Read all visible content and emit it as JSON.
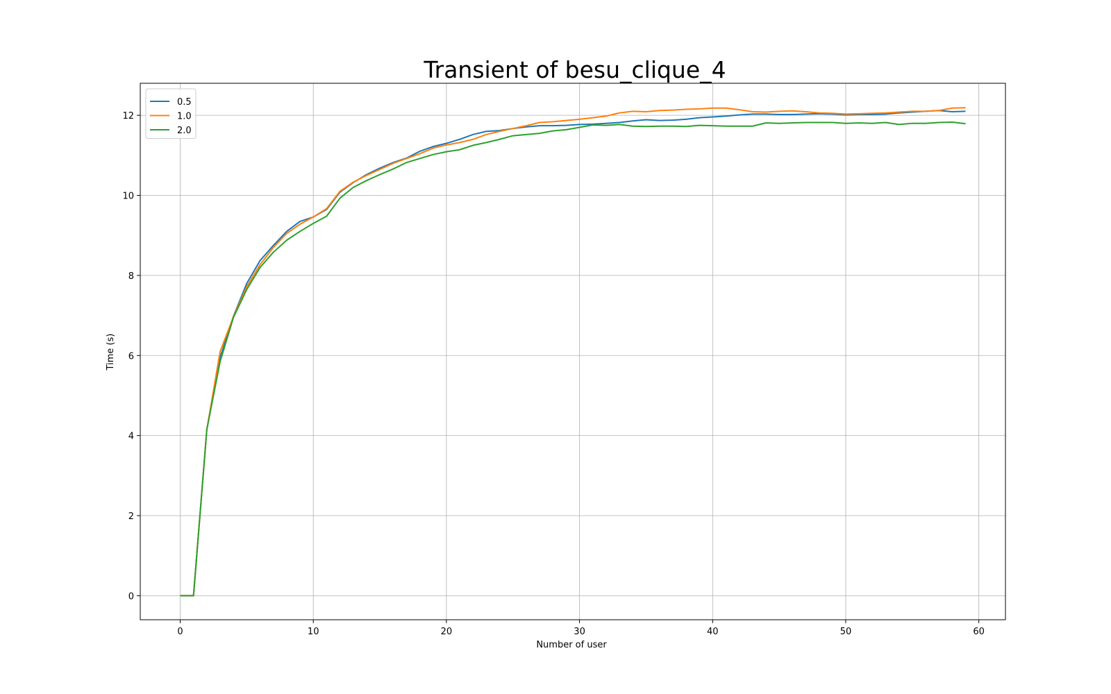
{
  "chart_data": {
    "type": "line",
    "title": "Transient of besu_clique_4",
    "xlabel": "Number of user",
    "ylabel": "Time (s)",
    "xlim": [
      -3,
      62
    ],
    "ylim": [
      -0.6,
      12.8
    ],
    "xticks": [
      0,
      10,
      20,
      30,
      40,
      50,
      60
    ],
    "yticks": [
      0,
      2,
      4,
      6,
      8,
      10,
      12
    ],
    "grid": true,
    "legend_position": "top-left",
    "x": [
      0,
      1,
      2,
      3,
      4,
      5,
      6,
      7,
      8,
      9,
      10,
      11,
      12,
      13,
      14,
      15,
      16,
      17,
      18,
      19,
      20,
      21,
      22,
      23,
      24,
      25,
      26,
      27,
      28,
      29,
      30,
      31,
      32,
      33,
      34,
      35,
      36,
      37,
      38,
      39,
      40,
      41,
      42,
      43,
      44,
      45,
      46,
      47,
      48,
      49,
      50,
      51,
      52,
      53,
      54,
      55,
      56,
      57,
      58,
      59
    ],
    "series": [
      {
        "name": "0.5",
        "color": "#1f77b4",
        "values": [
          0,
          0,
          4.15,
          5.95,
          6.98,
          7.8,
          8.37,
          8.75,
          9.1,
          9.35,
          9.46,
          9.65,
          10.08,
          10.32,
          10.52,
          10.68,
          10.82,
          10.93,
          11.1,
          11.22,
          11.3,
          11.4,
          11.52,
          11.6,
          11.62,
          11.67,
          11.71,
          11.74,
          11.74,
          11.75,
          11.77,
          11.78,
          11.8,
          11.82,
          11.86,
          11.89,
          11.87,
          11.88,
          11.9,
          11.94,
          11.96,
          11.98,
          12.01,
          12.03,
          12.03,
          12.02,
          12.02,
          12.03,
          12.04,
          12.03,
          12.01,
          12.02,
          12.02,
          12.03,
          12.06,
          12.08,
          12.1,
          12.12,
          12.09,
          12.1
        ]
      },
      {
        "name": "1.0",
        "color": "#ff7f0e",
        "values": [
          0,
          0,
          4.15,
          6.1,
          6.97,
          7.72,
          8.27,
          8.7,
          9.05,
          9.28,
          9.46,
          9.67,
          10.1,
          10.33,
          10.5,
          10.65,
          10.8,
          10.92,
          11.04,
          11.18,
          11.26,
          11.32,
          11.4,
          11.52,
          11.6,
          11.67,
          11.74,
          11.82,
          11.84,
          11.87,
          11.9,
          11.94,
          11.98,
          12.06,
          12.1,
          12.09,
          12.12,
          12.13,
          12.15,
          12.16,
          12.18,
          12.18,
          12.14,
          12.09,
          12.08,
          12.1,
          12.11,
          12.09,
          12.06,
          12.05,
          12.03,
          12.04,
          12.05,
          12.06,
          12.08,
          12.1,
          12.1,
          12.12,
          12.18,
          12.19
        ]
      },
      {
        "name": "2.0",
        "color": "#2ca02c",
        "values": [
          0,
          0,
          4.15,
          5.85,
          6.95,
          7.65,
          8.2,
          8.58,
          8.88,
          9.1,
          9.3,
          9.48,
          9.93,
          10.2,
          10.37,
          10.52,
          10.66,
          10.82,
          10.92,
          11.02,
          11.09,
          11.14,
          11.25,
          11.32,
          11.4,
          11.49,
          11.52,
          11.55,
          11.61,
          11.64,
          11.7,
          11.76,
          11.75,
          11.77,
          11.73,
          11.72,
          11.73,
          11.73,
          11.72,
          11.75,
          11.74,
          11.73,
          11.73,
          11.73,
          11.81,
          11.8,
          11.81,
          11.82,
          11.82,
          11.82,
          11.8,
          11.81,
          11.8,
          11.82,
          11.77,
          11.8,
          11.8,
          11.82,
          11.83,
          11.79
        ]
      }
    ]
  }
}
